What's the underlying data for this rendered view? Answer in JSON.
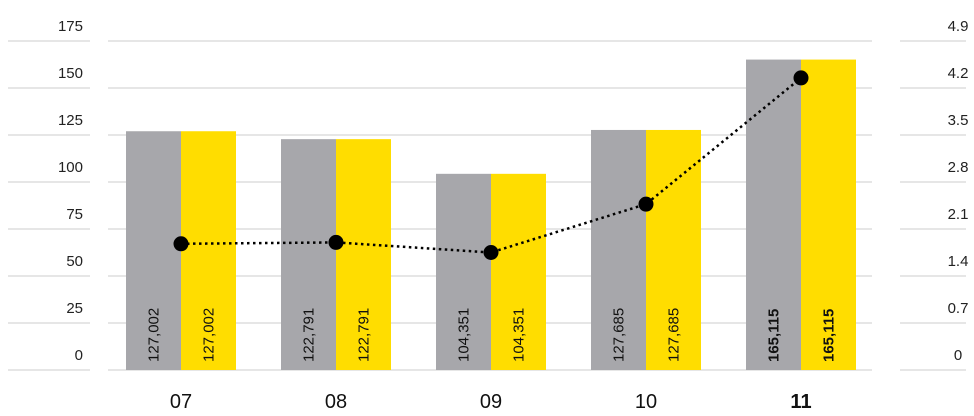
{
  "chart_data": {
    "type": "bar",
    "categories": [
      "07",
      "08",
      "09",
      "10",
      "11"
    ],
    "highlight_category": "11",
    "series": [
      {
        "color": "#a7a7ab",
        "values": [
          127002,
          122791,
          104351,
          127685,
          165115
        ],
        "value_labels": [
          "127,002",
          "122,791",
          "104,351",
          "127,685",
          "165,115"
        ]
      },
      {
        "color": "#ffdd00",
        "values": [
          127002,
          122791,
          104351,
          127685,
          165115
        ],
        "value_labels": [
          "127,002",
          "122,791",
          "104,351",
          "127,685",
          "165,115"
        ]
      }
    ],
    "line_series": {
      "axis": "right",
      "style": "dotted",
      "color": "#000000",
      "values": [
        1.88,
        1.9,
        1.75,
        2.47,
        4.35
      ]
    },
    "left_axis": {
      "ticks": [
        "0",
        "25",
        "50",
        "75",
        "100",
        "125",
        "150",
        "175"
      ],
      "ylim": [
        0,
        175
      ]
    },
    "right_axis": {
      "ticks": [
        "0",
        "0.7",
        "1.4",
        "2.1",
        "2.8",
        "3.5",
        "4.2",
        "4.9"
      ],
      "ylim": [
        0,
        4.9
      ]
    },
    "grid": true,
    "legend": "none"
  }
}
